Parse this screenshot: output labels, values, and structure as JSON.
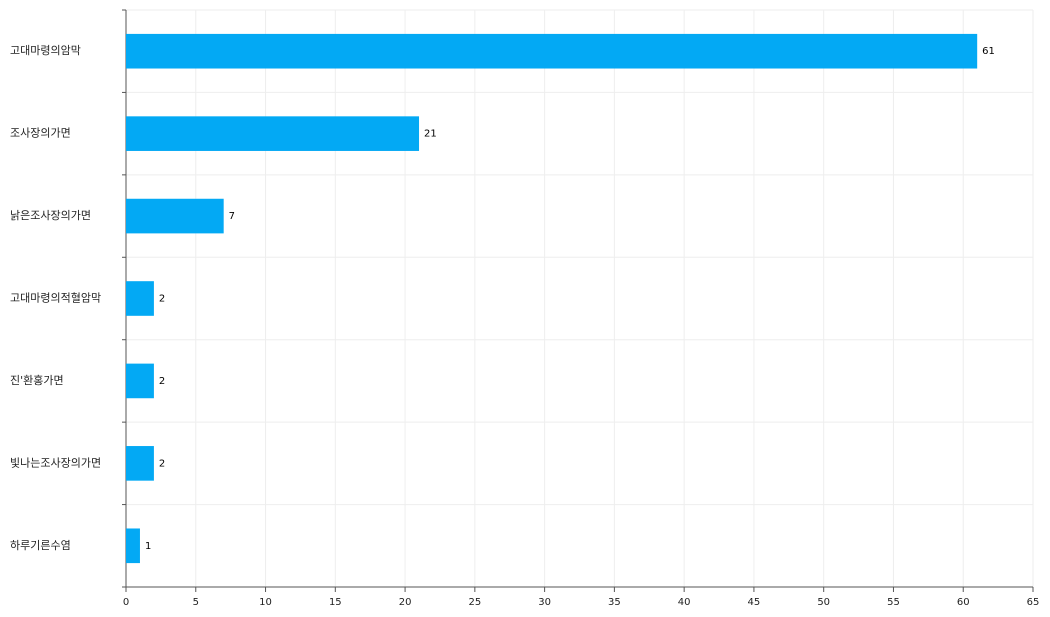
{
  "chart_data": {
    "type": "bar",
    "orientation": "horizontal",
    "categories": [
      "고대마령의암막",
      "조사장의가면",
      "낡은조사장의가면",
      "고대마령의적혈암막",
      "진'환홍가면",
      "빛나는조사장의가면",
      "하루기른수염"
    ],
    "values": [
      61,
      21,
      7,
      2,
      2,
      2,
      1
    ],
    "color": "#03a9f4",
    "xlim": [
      0,
      65
    ],
    "xticks": [
      0,
      5,
      10,
      15,
      20,
      25,
      30,
      35,
      40,
      45,
      50,
      55,
      60,
      65
    ],
    "grid": true
  }
}
